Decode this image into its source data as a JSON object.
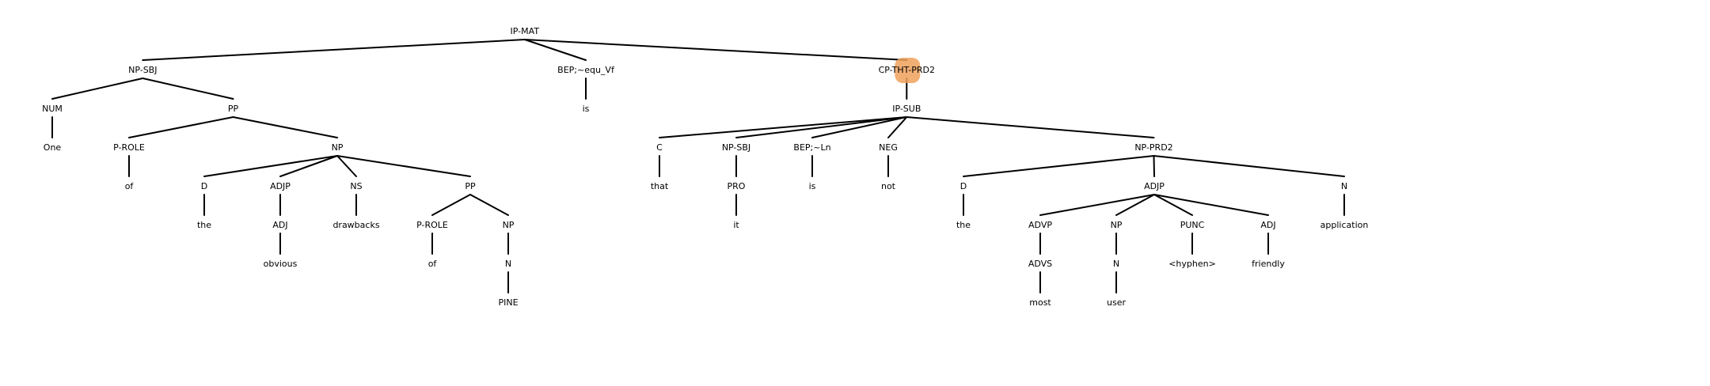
{
  "tree": {
    "root": {
      "label": "IP-MAT",
      "children": [
        {
          "label": "NP-SBJ",
          "children": [
            {
              "label": "NUM",
              "children": [
                {
                  "label": "One"
                }
              ]
            },
            {
              "label": "PP",
              "children": [
                {
                  "label": "P-ROLE",
                  "children": [
                    {
                      "label": "of"
                    }
                  ]
                },
                {
                  "label": "NP",
                  "children": [
                    {
                      "label": "D",
                      "children": [
                        {
                          "label": "the"
                        }
                      ]
                    },
                    {
                      "label": "ADJP",
                      "children": [
                        {
                          "label": "ADJ",
                          "children": [
                            {
                              "label": "obvious"
                            }
                          ]
                        }
                      ]
                    },
                    {
                      "label": "NS",
                      "children": [
                        {
                          "label": "drawbacks"
                        }
                      ]
                    },
                    {
                      "label": "PP",
                      "children": [
                        {
                          "label": "P-ROLE",
                          "children": [
                            {
                              "label": "of"
                            }
                          ]
                        },
                        {
                          "label": "NP",
                          "children": [
                            {
                              "label": "N",
                              "children": [
                                {
                                  "label": "PINE"
                                }
                              ]
                            }
                          ]
                        }
                      ]
                    }
                  ]
                }
              ]
            }
          ]
        },
        {
          "label": "BEP;~equ_Vf",
          "children": [
            {
              "label": "is"
            }
          ]
        },
        {
          "label": "CP-THT-PRD2",
          "highlighted": true,
          "children": [
            {
              "label": "IP-SUB",
              "children": [
                {
                  "label": "C",
                  "children": [
                    {
                      "label": "that"
                    }
                  ]
                },
                {
                  "label": "NP-SBJ",
                  "children": [
                    {
                      "label": "PRO",
                      "children": [
                        {
                          "label": "it"
                        }
                      ]
                    }
                  ]
                },
                {
                  "label": "BEP;~Ln",
                  "children": [
                    {
                      "label": "is"
                    }
                  ]
                },
                {
                  "label": "NEG",
                  "children": [
                    {
                      "label": "not"
                    }
                  ]
                },
                {
                  "label": "NP-PRD2",
                  "children": [
                    {
                      "label": "D",
                      "children": [
                        {
                          "label": "the"
                        }
                      ]
                    },
                    {
                      "label": "ADJP",
                      "children": [
                        {
                          "label": "ADVP",
                          "children": [
                            {
                              "label": "ADVS",
                              "children": [
                                {
                                  "label": "most"
                                }
                              ]
                            }
                          ]
                        },
                        {
                          "label": "NP",
                          "children": [
                            {
                              "label": "N",
                              "children": [
                                {
                                  "label": "user"
                                }
                              ]
                            }
                          ]
                        },
                        {
                          "label": "PUNC",
                          "children": [
                            {
                              "label": "<hyphen>"
                            }
                          ]
                        },
                        {
                          "label": "ADJ",
                          "children": [
                            {
                              "label": "friendly"
                            }
                          ]
                        }
                      ]
                    },
                    {
                      "label": "N",
                      "children": [
                        {
                          "label": "application"
                        }
                      ]
                    }
                  ]
                }
              ]
            }
          ]
        }
      ]
    }
  },
  "colors": {
    "edge": "#000000",
    "label": "#000000",
    "highlight": "#f0a15c"
  }
}
